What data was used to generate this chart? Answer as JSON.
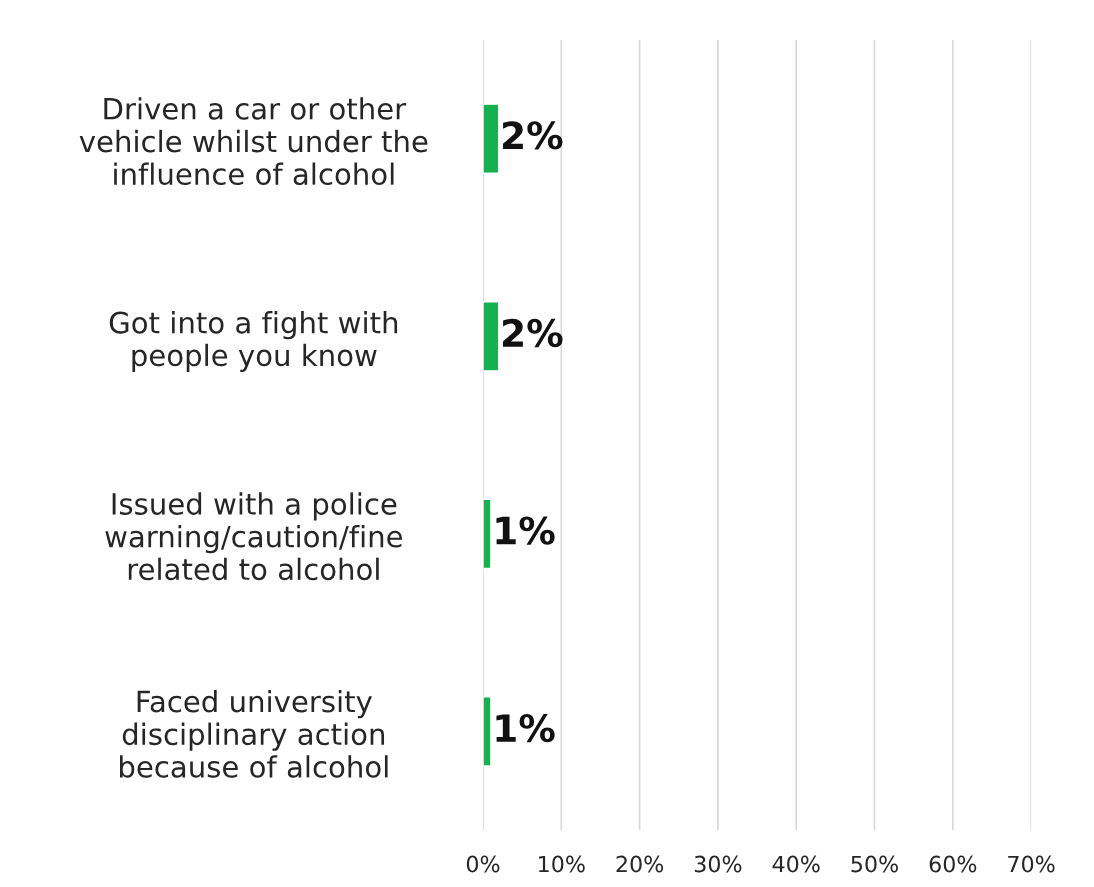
{
  "chart_data": {
    "type": "bar",
    "orientation": "horizontal",
    "categories": [
      "Driven a car or other\nvehicle whilst under the\ninfluence of alcohol",
      "Got into a fight with\npeople you know",
      "Issued with a police\nwarning/caution/fine\nrelated to alcohol",
      "Faced university\ndisciplinary action\nbecause of alcohol"
    ],
    "values": [
      2,
      2,
      1,
      1
    ],
    "value_labels": [
      "2%",
      "2%",
      "1%",
      "1%"
    ],
    "color": "#17b04f",
    "xlim": [
      0,
      70
    ],
    "xticks": [
      {
        "value": 0,
        "label": "0%"
      },
      {
        "value": 10,
        "label": "10%"
      },
      {
        "value": 20,
        "label": "20%"
      },
      {
        "value": 30,
        "label": "30%"
      },
      {
        "value": 40,
        "label": "40%"
      },
      {
        "value": 50,
        "label": "50%"
      },
      {
        "value": 60,
        "label": "60%"
      },
      {
        "value": 70,
        "label": "70%"
      }
    ],
    "grid": "x",
    "legend": false
  }
}
